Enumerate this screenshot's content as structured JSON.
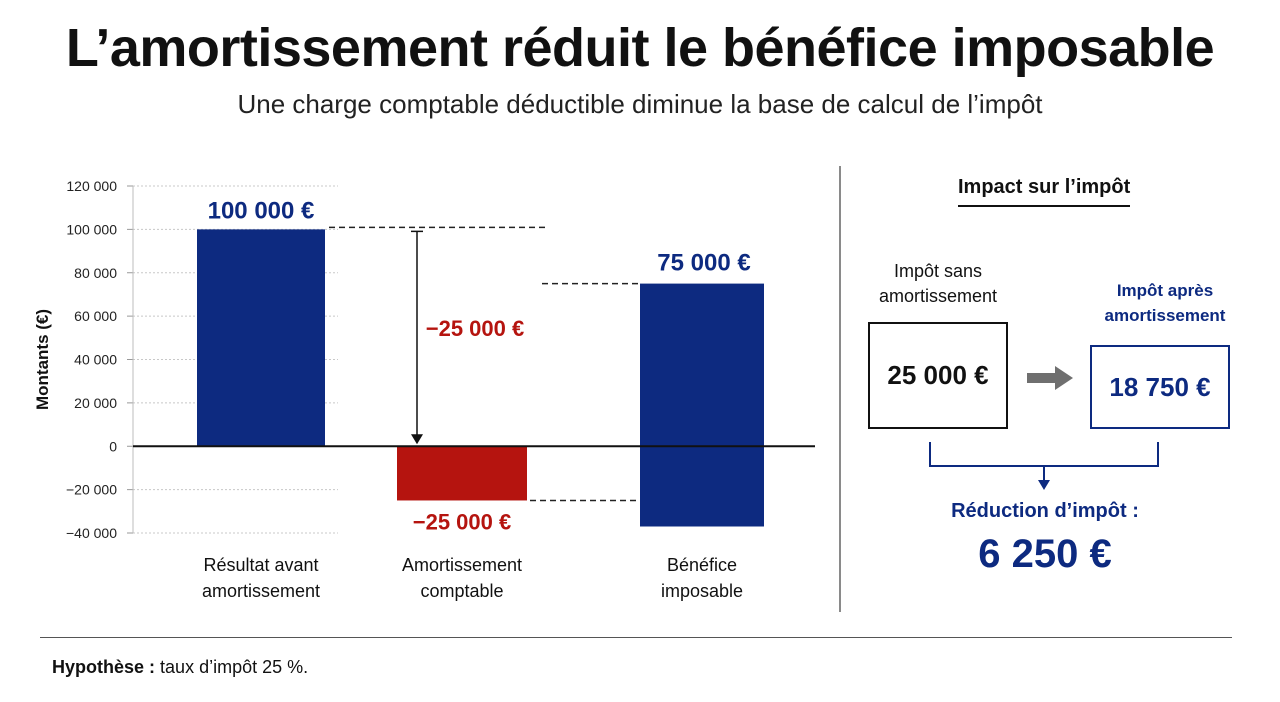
{
  "title": "L’amortissement réduit le bénéfice imposable",
  "subtitle": "Une charge comptable déductible diminue la base de calcul de l’impôt",
  "chart_data": {
    "type": "bar",
    "ylabel": "Montants (€)",
    "ylim": [
      -40000,
      120000
    ],
    "yticks": [
      120000,
      100000,
      80000,
      60000,
      40000,
      20000,
      0,
      -20000,
      -40000
    ],
    "ytick_labels": [
      "120 000",
      "100 000",
      "80 000",
      "60 000",
      "40 000",
      "20 000",
      "0",
      "−20 000",
      "−40 000"
    ],
    "grid": true,
    "categories": [
      {
        "line1": "Résultat avant",
        "line2": "amortissement"
      },
      {
        "line1": "Amortissement",
        "line2": "comptable"
      },
      {
        "line1": "Bénéfice",
        "line2": "imposable"
      }
    ],
    "values": [
      100000,
      -25000,
      75000
    ],
    "value_labels": [
      "100 000 €",
      "−25 000 €",
      "75 000 €"
    ],
    "delta_label": "−25 000 €",
    "colors": {
      "blue": "#0d2a80",
      "red": "#b5140f"
    }
  },
  "impact": {
    "title": "Impact sur l’impôt",
    "before_label_line1": "Impôt sans",
    "before_label_line2": "amortissement",
    "before_value": "25 000 €",
    "after_label_line1": "Impôt après",
    "after_label_line2": "amortissement",
    "after_value": "18 750 €",
    "reduction_label": "Réduction d’impôt :",
    "reduction_value": "6 250 €"
  },
  "footnote": {
    "label": "Hypothèse :",
    "text": "taux d’impôt 25 %."
  }
}
